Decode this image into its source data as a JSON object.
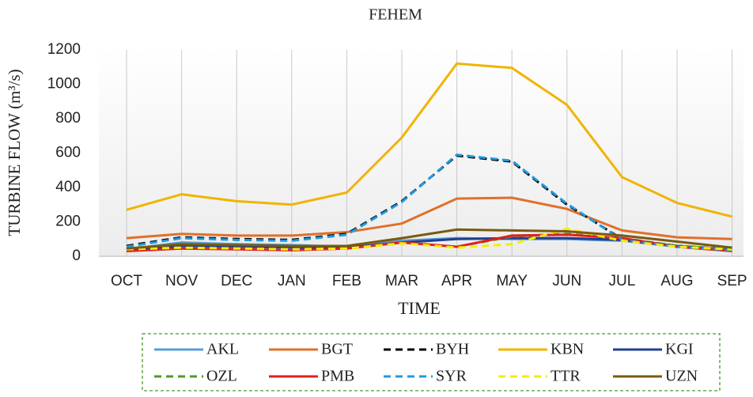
{
  "chart_data": {
    "type": "line",
    "title": "FEHEM",
    "x_label": "TIME",
    "y_label": "TURBINE FLOW (m³/s)",
    "categories": [
      "OCT",
      "NOV",
      "DEC",
      "JAN",
      "FEB",
      "MAR",
      "APR",
      "MAY",
      "JUN",
      "JUL",
      "AUG",
      "SEP"
    ],
    "ylim": [
      0,
      1200
    ],
    "yticks": [
      0,
      200,
      400,
      600,
      800,
      1000,
      1200
    ],
    "grid": true,
    "series": [
      {
        "name": "AKL",
        "color": "#5b9bd5",
        "line_style": "solid",
        "values": [
          40,
          80,
          70,
          65,
          55,
          90,
          105,
          100,
          100,
          90,
          55,
          40
        ]
      },
      {
        "name": "BGT",
        "color": "#e0702a",
        "line_style": "solid",
        "values": [
          105,
          130,
          120,
          120,
          140,
          190,
          335,
          340,
          275,
          150,
          110,
          100
        ]
      },
      {
        "name": "BYH",
        "color": "#000000",
        "line_style": "dashed",
        "values": [
          60,
          110,
          100,
          95,
          130,
          320,
          585,
          550,
          300,
          100,
          60,
          40
        ]
      },
      {
        "name": "KBN",
        "color": "#f0b400",
        "line_style": "solid",
        "values": [
          270,
          360,
          320,
          300,
          370,
          690,
          1120,
          1095,
          880,
          460,
          310,
          230
        ]
      },
      {
        "name": "KGI",
        "color": "#1f3f8f",
        "line_style": "solid",
        "values": [
          35,
          60,
          55,
          50,
          50,
          80,
          100,
          105,
          105,
          95,
          60,
          40
        ]
      },
      {
        "name": "OZL",
        "color": "#4e9a2a",
        "line_style": "dashed",
        "values": [
          35,
          45,
          45,
          40,
          45,
          75,
          55,
          115,
          130,
          105,
          60,
          40
        ]
      },
      {
        "name": "PMB",
        "color": "#e0201e",
        "line_style": "solid",
        "values": [
          30,
          45,
          40,
          35,
          45,
          80,
          55,
          120,
          125,
          105,
          55,
          30
        ]
      },
      {
        "name": "SYR",
        "color": "#1e9be0",
        "line_style": "dashed",
        "values": [
          55,
          105,
          95,
          90,
          125,
          315,
          590,
          555,
          305,
          95,
          55,
          35
        ]
      },
      {
        "name": "TTR",
        "color": "#f5ee00",
        "line_style": "dashed",
        "values": [
          40,
          50,
          45,
          40,
          45,
          75,
          50,
          70,
          160,
          90,
          55,
          40
        ]
      },
      {
        "name": "UZN",
        "color": "#7a5a10",
        "line_style": "solid",
        "values": [
          45,
          70,
          65,
          60,
          60,
          105,
          155,
          150,
          145,
          120,
          85,
          50
        ]
      }
    ]
  }
}
